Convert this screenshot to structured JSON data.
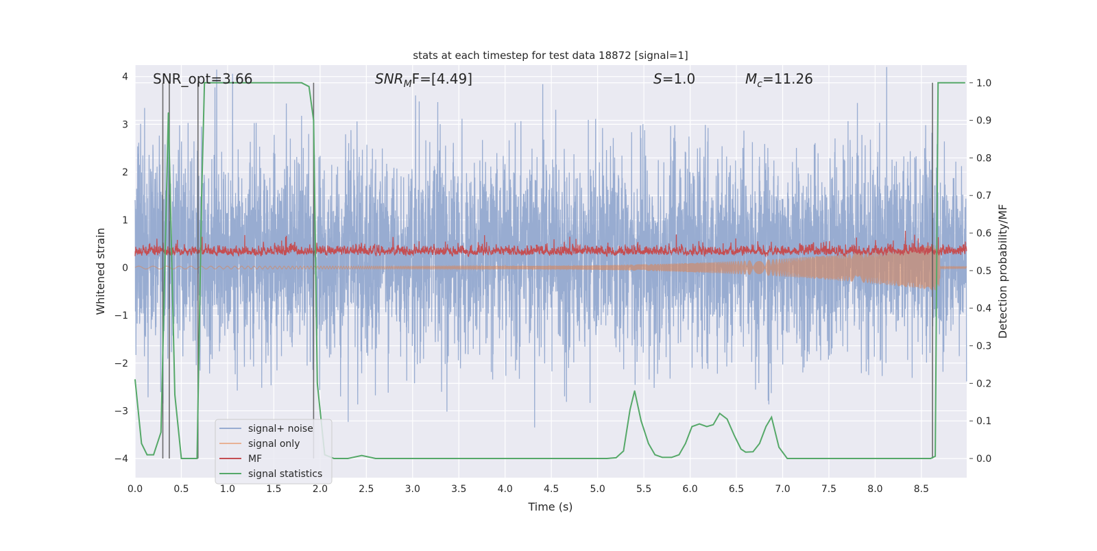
{
  "chart_data": {
    "type": "line",
    "title": "stats at each timestep for test data 18872 [signal=1]",
    "xlabel": "Time (s)",
    "ylabel": "Whitened strain",
    "ylabel_right": "Detection probability/MF",
    "xlim": [
      0,
      8.99
    ],
    "ylim": [
      -4.4,
      4.24
    ],
    "ylim_right": [
      -0.051,
      1.047
    ],
    "grid": true,
    "background": "#eaeaf2",
    "x_ticks": [
      "0.0",
      "0.5",
      "1.0",
      "1.5",
      "2.0",
      "2.5",
      "3.0",
      "3.5",
      "4.0",
      "4.5",
      "5.0",
      "5.5",
      "6.0",
      "6.5",
      "7.0",
      "7.5",
      "8.0",
      "8.5"
    ],
    "y_ticks": [
      "4",
      "3",
      "2",
      "1",
      "0",
      "−1",
      "−2",
      "−3",
      "−4"
    ],
    "y_ticks_right": [
      "1.0",
      "0.9",
      "0.8",
      "0.7",
      "0.6",
      "0.5",
      "0.4",
      "0.3",
      "0.2",
      "0.1",
      "0.0"
    ],
    "annotations": {
      "snr_opt": "SNR_opt=3.66",
      "snr_mf_main": "SNR",
      "snr_mf_sub": "M",
      "snr_mf_rest": "F=[4.49]",
      "s_main": "S",
      "s_rest": "=1.0",
      "mc_main": "M",
      "mc_sub": "c",
      "mc_rest": "=11.26"
    },
    "legend": {
      "placement": "lower-left",
      "entries": [
        {
          "label": "signal+ noise",
          "color": "#98acd1"
        },
        {
          "label": "signal only",
          "color": "#e8b295"
        },
        {
          "label": "MF",
          "color": "#c44e52"
        },
        {
          "label": "signal statistics",
          "color": "#55a868"
        }
      ]
    },
    "series": [
      {
        "name": "signal+ noise",
        "axis": "left",
        "color": "#98acd1",
        "description_range": [
          -3.9,
          3.9
        ]
      },
      {
        "name": "signal only",
        "axis": "left",
        "color": "#dd8452",
        "chirp_end": 8.65,
        "peak_amplitude": 0.5
      },
      {
        "name": "MF",
        "axis": "left",
        "color": "#c44e52",
        "range": [
          0.0,
          0.95
        ]
      },
      {
        "name": "signal statistics",
        "axis": "right",
        "color": "#55a868",
        "x": [
          0.0,
          0.07,
          0.13,
          0.2,
          0.28,
          0.36,
          0.43,
          0.5,
          0.6,
          0.67,
          0.72,
          0.75,
          1.0,
          1.5,
          1.8,
          1.88,
          1.93,
          1.97,
          2.05,
          2.15,
          2.3,
          2.45,
          2.6,
          3.0,
          4.0,
          5.0,
          5.1,
          5.2,
          5.28,
          5.35,
          5.4,
          5.47,
          5.55,
          5.62,
          5.7,
          5.8,
          5.88,
          5.95,
          6.02,
          6.1,
          6.18,
          6.25,
          6.32,
          6.4,
          6.48,
          6.55,
          6.6,
          6.68,
          6.75,
          6.82,
          6.88,
          6.96,
          7.05,
          7.5,
          8.0,
          8.6,
          8.65,
          8.68,
          8.75,
          8.97
        ],
        "y": [
          0.21,
          0.04,
          0.01,
          0.01,
          0.07,
          0.92,
          0.17,
          0.0,
          0.0,
          0.0,
          0.7,
          1.0,
          1.0,
          1.0,
          1.0,
          0.99,
          0.9,
          0.2,
          0.01,
          0.0,
          0.0,
          0.008,
          0.0,
          0.0,
          0.0,
          0.0,
          0.0,
          0.002,
          0.02,
          0.13,
          0.18,
          0.1,
          0.04,
          0.01,
          0.003,
          0.003,
          0.01,
          0.04,
          0.085,
          0.092,
          0.085,
          0.09,
          0.12,
          0.105,
          0.06,
          0.025,
          0.017,
          0.018,
          0.04,
          0.085,
          0.11,
          0.03,
          0.0,
          0.0,
          0.0,
          0.0,
          0.006,
          1.0,
          1.0,
          1.0
        ]
      }
    ],
    "vertical_lines": {
      "axis": "right",
      "x": [
        0.3,
        0.37,
        0.68,
        1.93,
        8.62
      ],
      "y_range": [
        0.0,
        1.0
      ],
      "color": "#555555"
    }
  }
}
